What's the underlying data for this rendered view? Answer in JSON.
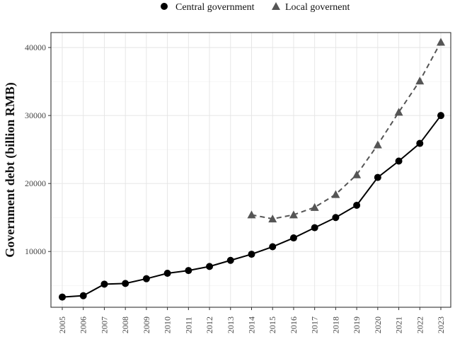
{
  "chart_data": {
    "type": "line",
    "title": "",
    "xlabel": "",
    "ylabel": "Government debt (billion RMB)",
    "x": [
      2005,
      2006,
      2007,
      2008,
      2009,
      2010,
      2011,
      2012,
      2013,
      2014,
      2015,
      2016,
      2017,
      2018,
      2019,
      2020,
      2021,
      2022,
      2023
    ],
    "yticks": [
      10000,
      20000,
      30000,
      40000
    ],
    "ylim": [
      1800,
      42200
    ],
    "grid": true,
    "legend_position": "top",
    "series": [
      {
        "name": "Central government",
        "marker": "circle",
        "line_style": "solid",
        "color": "#000000",
        "x": [
          2005,
          2006,
          2007,
          2008,
          2009,
          2010,
          2011,
          2012,
          2013,
          2014,
          2015,
          2016,
          2017,
          2018,
          2019,
          2020,
          2021,
          2022,
          2023
        ],
        "values": [
          3300,
          3500,
          5200,
          5300,
          6000,
          6800,
          7200,
          7800,
          8700,
          9600,
          10700,
          12000,
          13500,
          15000,
          16800,
          20900,
          23300,
          25900,
          30000
        ]
      },
      {
        "name": "Local governent",
        "marker": "triangle",
        "line_style": "dashed",
        "color": "#555555",
        "x": [
          2014,
          2015,
          2016,
          2017,
          2018,
          2019,
          2020,
          2021,
          2022,
          2023
        ],
        "values": [
          15400,
          14800,
          15400,
          16500,
          18400,
          21300,
          25700,
          30500,
          35100,
          40800
        ]
      }
    ]
  }
}
